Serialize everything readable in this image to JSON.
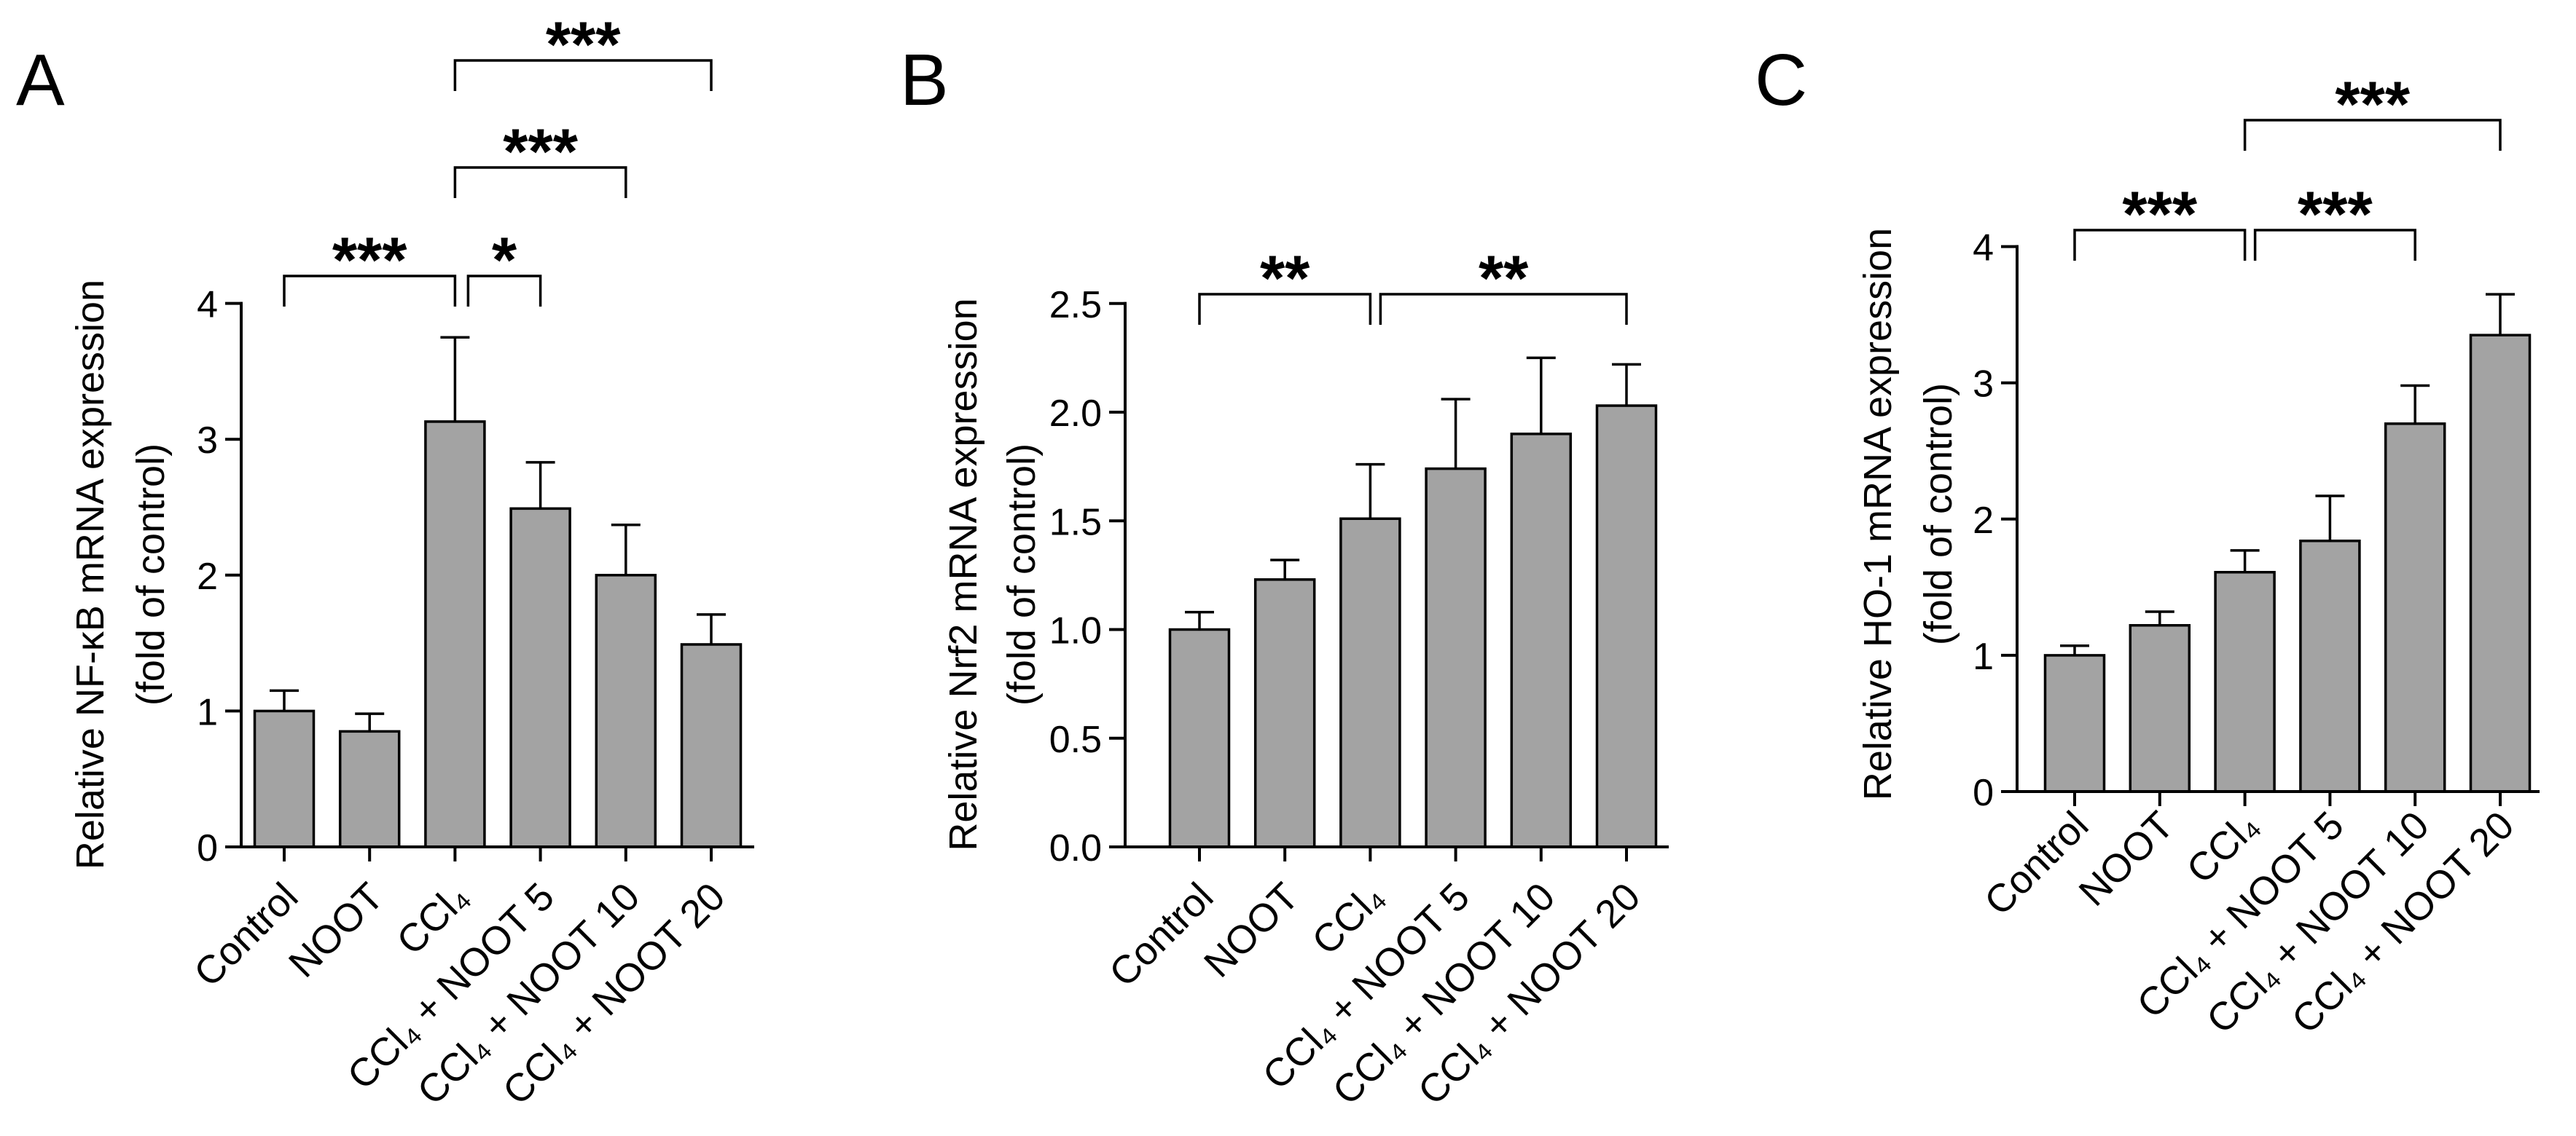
{
  "chart_data": [
    {
      "panel_label": "A",
      "type": "bar",
      "categories": [
        "Control",
        "NOOT",
        "CCl₄",
        "CCl₄ + NOOT 5",
        "CCl₄ + NOOT 10",
        "CCl₄ + NOOT 20"
      ],
      "values": [
        1.0,
        0.85,
        3.13,
        2.49,
        2.0,
        1.49
      ],
      "errors": [
        0.15,
        0.13,
        0.62,
        0.34,
        0.37,
        0.22
      ],
      "ylabel": "Relative NF-κB mRNA expression",
      "ylabel_line2": "(fold of control)",
      "ylim": [
        0,
        4
      ],
      "yticks": [
        0,
        1,
        2,
        3,
        4
      ],
      "ytick_labels": [
        "0",
        "1",
        "2",
        "3",
        "4"
      ],
      "bar_color": "#a3a3a3",
      "significance": [
        {
          "from": 0,
          "to": 2,
          "label": "***"
        },
        {
          "from": 2,
          "to": 3,
          "label": "*"
        },
        {
          "from": 2,
          "to": 4,
          "label": "***"
        },
        {
          "from": 2,
          "to": 5,
          "label": "***"
        }
      ]
    },
    {
      "panel_label": "B",
      "type": "bar",
      "categories": [
        "Control",
        "NOOT",
        "CCl₄",
        "CCl₄ + NOOT 5",
        "CCl₄ + NOOT 10",
        "CCl₄ + NOOT 20"
      ],
      "values": [
        1.0,
        1.23,
        1.51,
        1.74,
        1.9,
        2.03
      ],
      "errors": [
        0.08,
        0.09,
        0.25,
        0.32,
        0.35,
        0.19
      ],
      "ylabel": "Relative Nrf2 mRNA expression",
      "ylabel_line2": "(fold of control)",
      "ylim": [
        0,
        2.5
      ],
      "yticks": [
        0,
        0.5,
        1.0,
        1.5,
        2.0,
        2.5
      ],
      "ytick_labels": [
        "0.0",
        "0.5",
        "1.0",
        "1.5",
        "2.0",
        "2.5"
      ],
      "bar_color": "#a3a3a3",
      "significance": [
        {
          "from": 0,
          "to": 2,
          "label": "**"
        },
        {
          "from": 2,
          "to": 5,
          "label": "**"
        }
      ]
    },
    {
      "panel_label": "C",
      "type": "bar",
      "categories": [
        "Control",
        "NOOT",
        "CCl₄",
        "CCl₄ + NOOT 5",
        "CCl₄ + NOOT 10",
        "CCl₄ + NOOT 20"
      ],
      "values": [
        1.0,
        1.22,
        1.61,
        1.84,
        2.7,
        3.35
      ],
      "errors": [
        0.07,
        0.1,
        0.16,
        0.33,
        0.28,
        0.3
      ],
      "ylabel": "Relative HO-1 mRNA expression",
      "ylabel_line2": "(fold of control)",
      "ylim": [
        0,
        4
      ],
      "yticks": [
        0,
        1,
        2,
        3,
        4
      ],
      "ytick_labels": [
        "0",
        "1",
        "2",
        "3",
        "4"
      ],
      "bar_color": "#a3a3a3",
      "significance": [
        {
          "from": 0,
          "to": 2,
          "label": "***"
        },
        {
          "from": 2,
          "to": 4,
          "label": "***"
        },
        {
          "from": 2,
          "to": 5,
          "label": "***"
        }
      ]
    }
  ]
}
